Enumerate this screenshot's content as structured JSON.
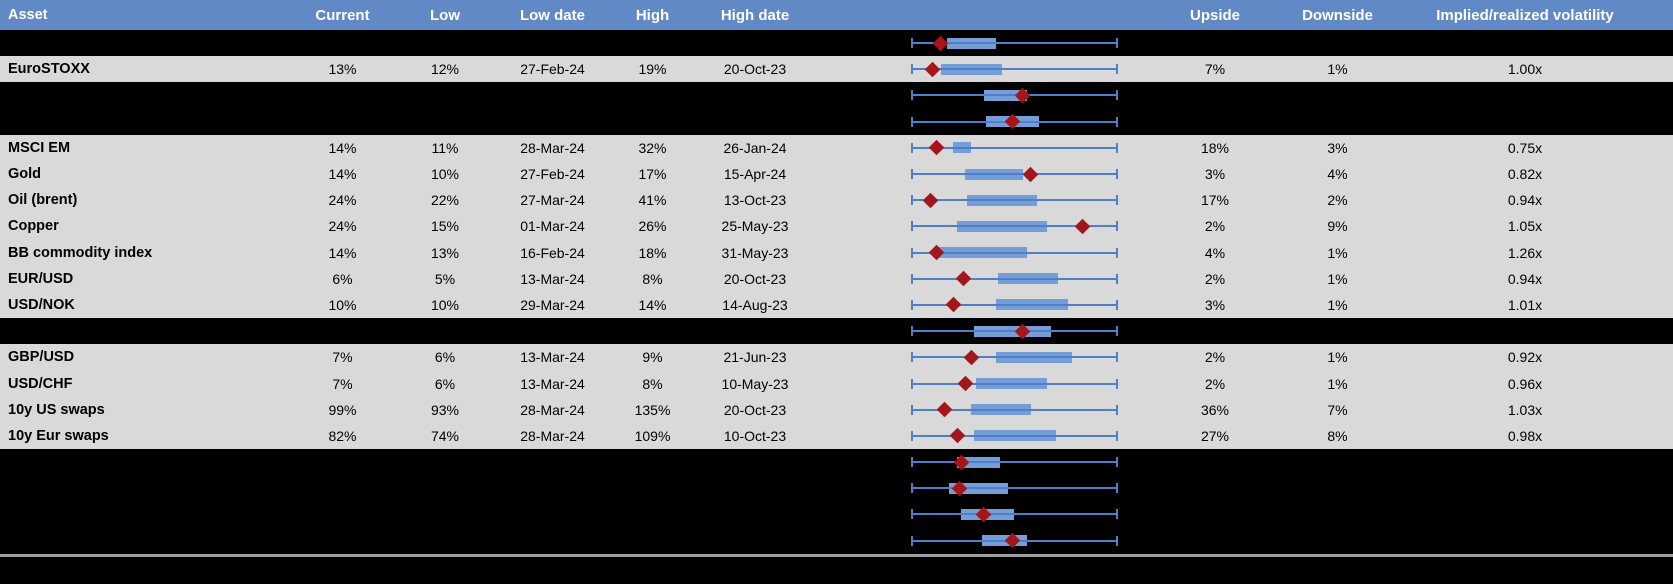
{
  "header": {
    "columns": [
      {
        "key": "asset",
        "label": "Asset"
      },
      {
        "key": "current",
        "label": "Current"
      },
      {
        "key": "low",
        "label": "Low"
      },
      {
        "key": "low_date",
        "label": "Low date"
      },
      {
        "key": "high",
        "label": "High"
      },
      {
        "key": "high_date",
        "label": "High date"
      },
      {
        "key": "plot",
        "label": ""
      },
      {
        "key": "upside",
        "label": "Upside"
      },
      {
        "key": "downside",
        "label": "Downside"
      },
      {
        "key": "implied_realized",
        "label": "Implied/realized volatility"
      }
    ]
  },
  "colors": {
    "header_bg": "#6189C6",
    "header_text": "#FFFFFF",
    "data_row_bg": "#D9D9D9",
    "hidden_row_bg": "#000000",
    "whisker_blue": "#4F7FC6",
    "box_blue": "#759ED8",
    "marker_red": "#A3161B",
    "divider_gray": "#9E9E9E"
  },
  "rows": [
    {
      "type": "hidden",
      "plot": {
        "box_lo": 17,
        "box_hi": 41,
        "marker": 14
      }
    },
    {
      "type": "data",
      "asset": "EuroSTOXX",
      "current": "13%",
      "low": "12%",
      "low_date": "27-Feb-24",
      "high": "19%",
      "high_date": "20-Oct-23",
      "upside": "7%",
      "downside": "1%",
      "implied_realized": "1.00x",
      "plot": {
        "box_lo": 14,
        "box_hi": 44,
        "marker": 10
      }
    },
    {
      "type": "hidden",
      "plot": {
        "box_lo": 35,
        "box_hi": 56,
        "marker": 54
      }
    },
    {
      "type": "hidden",
      "plot": {
        "box_lo": 36,
        "box_hi": 62,
        "marker": 49
      }
    },
    {
      "type": "data",
      "asset": "MSCI EM",
      "current": "14%",
      "low": "11%",
      "low_date": "28-Mar-24",
      "high": "32%",
      "high_date": "26-Jan-24",
      "upside": "18%",
      "downside": "3%",
      "implied_realized": "0.75x",
      "plot": {
        "box_lo": 20,
        "box_hi": 29,
        "marker": 12
      }
    },
    {
      "type": "data",
      "asset": "Gold",
      "current": "14%",
      "low": "10%",
      "low_date": "27-Feb-24",
      "high": "17%",
      "high_date": "15-Apr-24",
      "upside": "3%",
      "downside": "4%",
      "implied_realized": "0.82x",
      "plot": {
        "box_lo": 26,
        "box_hi": 54,
        "marker": 58
      }
    },
    {
      "type": "data",
      "asset": "Oil (brent)",
      "current": "24%",
      "low": "22%",
      "low_date": "27-Mar-24",
      "high": "41%",
      "high_date": "13-Oct-23",
      "upside": "17%",
      "downside": "2%",
      "implied_realized": "0.94x",
      "plot": {
        "box_lo": 27,
        "box_hi": 61,
        "marker": 9
      }
    },
    {
      "type": "data",
      "asset": "Copper",
      "current": "24%",
      "low": "15%",
      "low_date": "01-Mar-24",
      "high": "26%",
      "high_date": "25-May-23",
      "upside": "2%",
      "downside": "9%",
      "implied_realized": "1.05x",
      "plot": {
        "box_lo": 22,
        "box_hi": 66,
        "marker": 83
      }
    },
    {
      "type": "data",
      "asset": "BB commodity index",
      "current": "14%",
      "low": "13%",
      "low_date": "16-Feb-24",
      "high": "18%",
      "high_date": "31-May-23",
      "upside": "4%",
      "downside": "1%",
      "implied_realized": "1.26x",
      "plot": {
        "box_lo": 11,
        "box_hi": 56,
        "marker": 12
      }
    },
    {
      "type": "data",
      "asset": "EUR/USD",
      "current": "6%",
      "low": "5%",
      "low_date": "13-Mar-24",
      "high": "8%",
      "high_date": "20-Oct-23",
      "upside": "2%",
      "downside": "1%",
      "implied_realized": "0.94x",
      "plot": {
        "box_lo": 42,
        "box_hi": 71,
        "marker": 25
      }
    },
    {
      "type": "data",
      "asset": "USD/NOK",
      "current": "10%",
      "low": "10%",
      "low_date": "29-Mar-24",
      "high": "14%",
      "high_date": "14-Aug-23",
      "upside": "3%",
      "downside": "1%",
      "implied_realized": "1.01x",
      "plot": {
        "box_lo": 41,
        "box_hi": 76,
        "marker": 20
      }
    },
    {
      "type": "hidden",
      "plot": {
        "box_lo": 30,
        "box_hi": 68,
        "marker": 54
      }
    },
    {
      "type": "data",
      "asset": "GBP/USD",
      "current": "7%",
      "low": "6%",
      "low_date": "13-Mar-24",
      "high": "9%",
      "high_date": "21-Jun-23",
      "upside": "2%",
      "downside": "1%",
      "implied_realized": "0.92x",
      "plot": {
        "box_lo": 41,
        "box_hi": 78,
        "marker": 29
      }
    },
    {
      "type": "data",
      "asset": "USD/CHF",
      "current": "7%",
      "low": "6%",
      "low_date": "13-Mar-24",
      "high": "8%",
      "high_date": "10-May-23",
      "upside": "2%",
      "downside": "1%",
      "implied_realized": "0.96x",
      "plot": {
        "box_lo": 31,
        "box_hi": 66,
        "marker": 26
      }
    },
    {
      "type": "data",
      "asset": "10y US swaps",
      "current": "99%",
      "low": "93%",
      "low_date": "28-Mar-24",
      "high": "135%",
      "high_date": "20-Oct-23",
      "upside": "36%",
      "downside": "7%",
      "implied_realized": "1.03x",
      "plot": {
        "box_lo": 29,
        "box_hi": 58,
        "marker": 16
      }
    },
    {
      "type": "data",
      "asset": "10y Eur swaps",
      "current": "82%",
      "low": "74%",
      "low_date": "28-Mar-24",
      "high": "109%",
      "high_date": "10-Oct-23",
      "upside": "27%",
      "downside": "8%",
      "implied_realized": "0.98x",
      "plot": {
        "box_lo": 30,
        "box_hi": 70,
        "marker": 22
      }
    },
    {
      "type": "hidden",
      "plot": {
        "box_lo": 22,
        "box_hi": 43,
        "marker": 24
      }
    },
    {
      "type": "hidden",
      "plot": {
        "box_lo": 18,
        "box_hi": 47,
        "marker": 23
      }
    },
    {
      "type": "hidden",
      "plot": {
        "box_lo": 24,
        "box_hi": 50,
        "marker": 35
      }
    },
    {
      "type": "hidden",
      "plot": {
        "box_lo": 34,
        "box_hi": 56,
        "marker": 49
      }
    }
  ]
}
